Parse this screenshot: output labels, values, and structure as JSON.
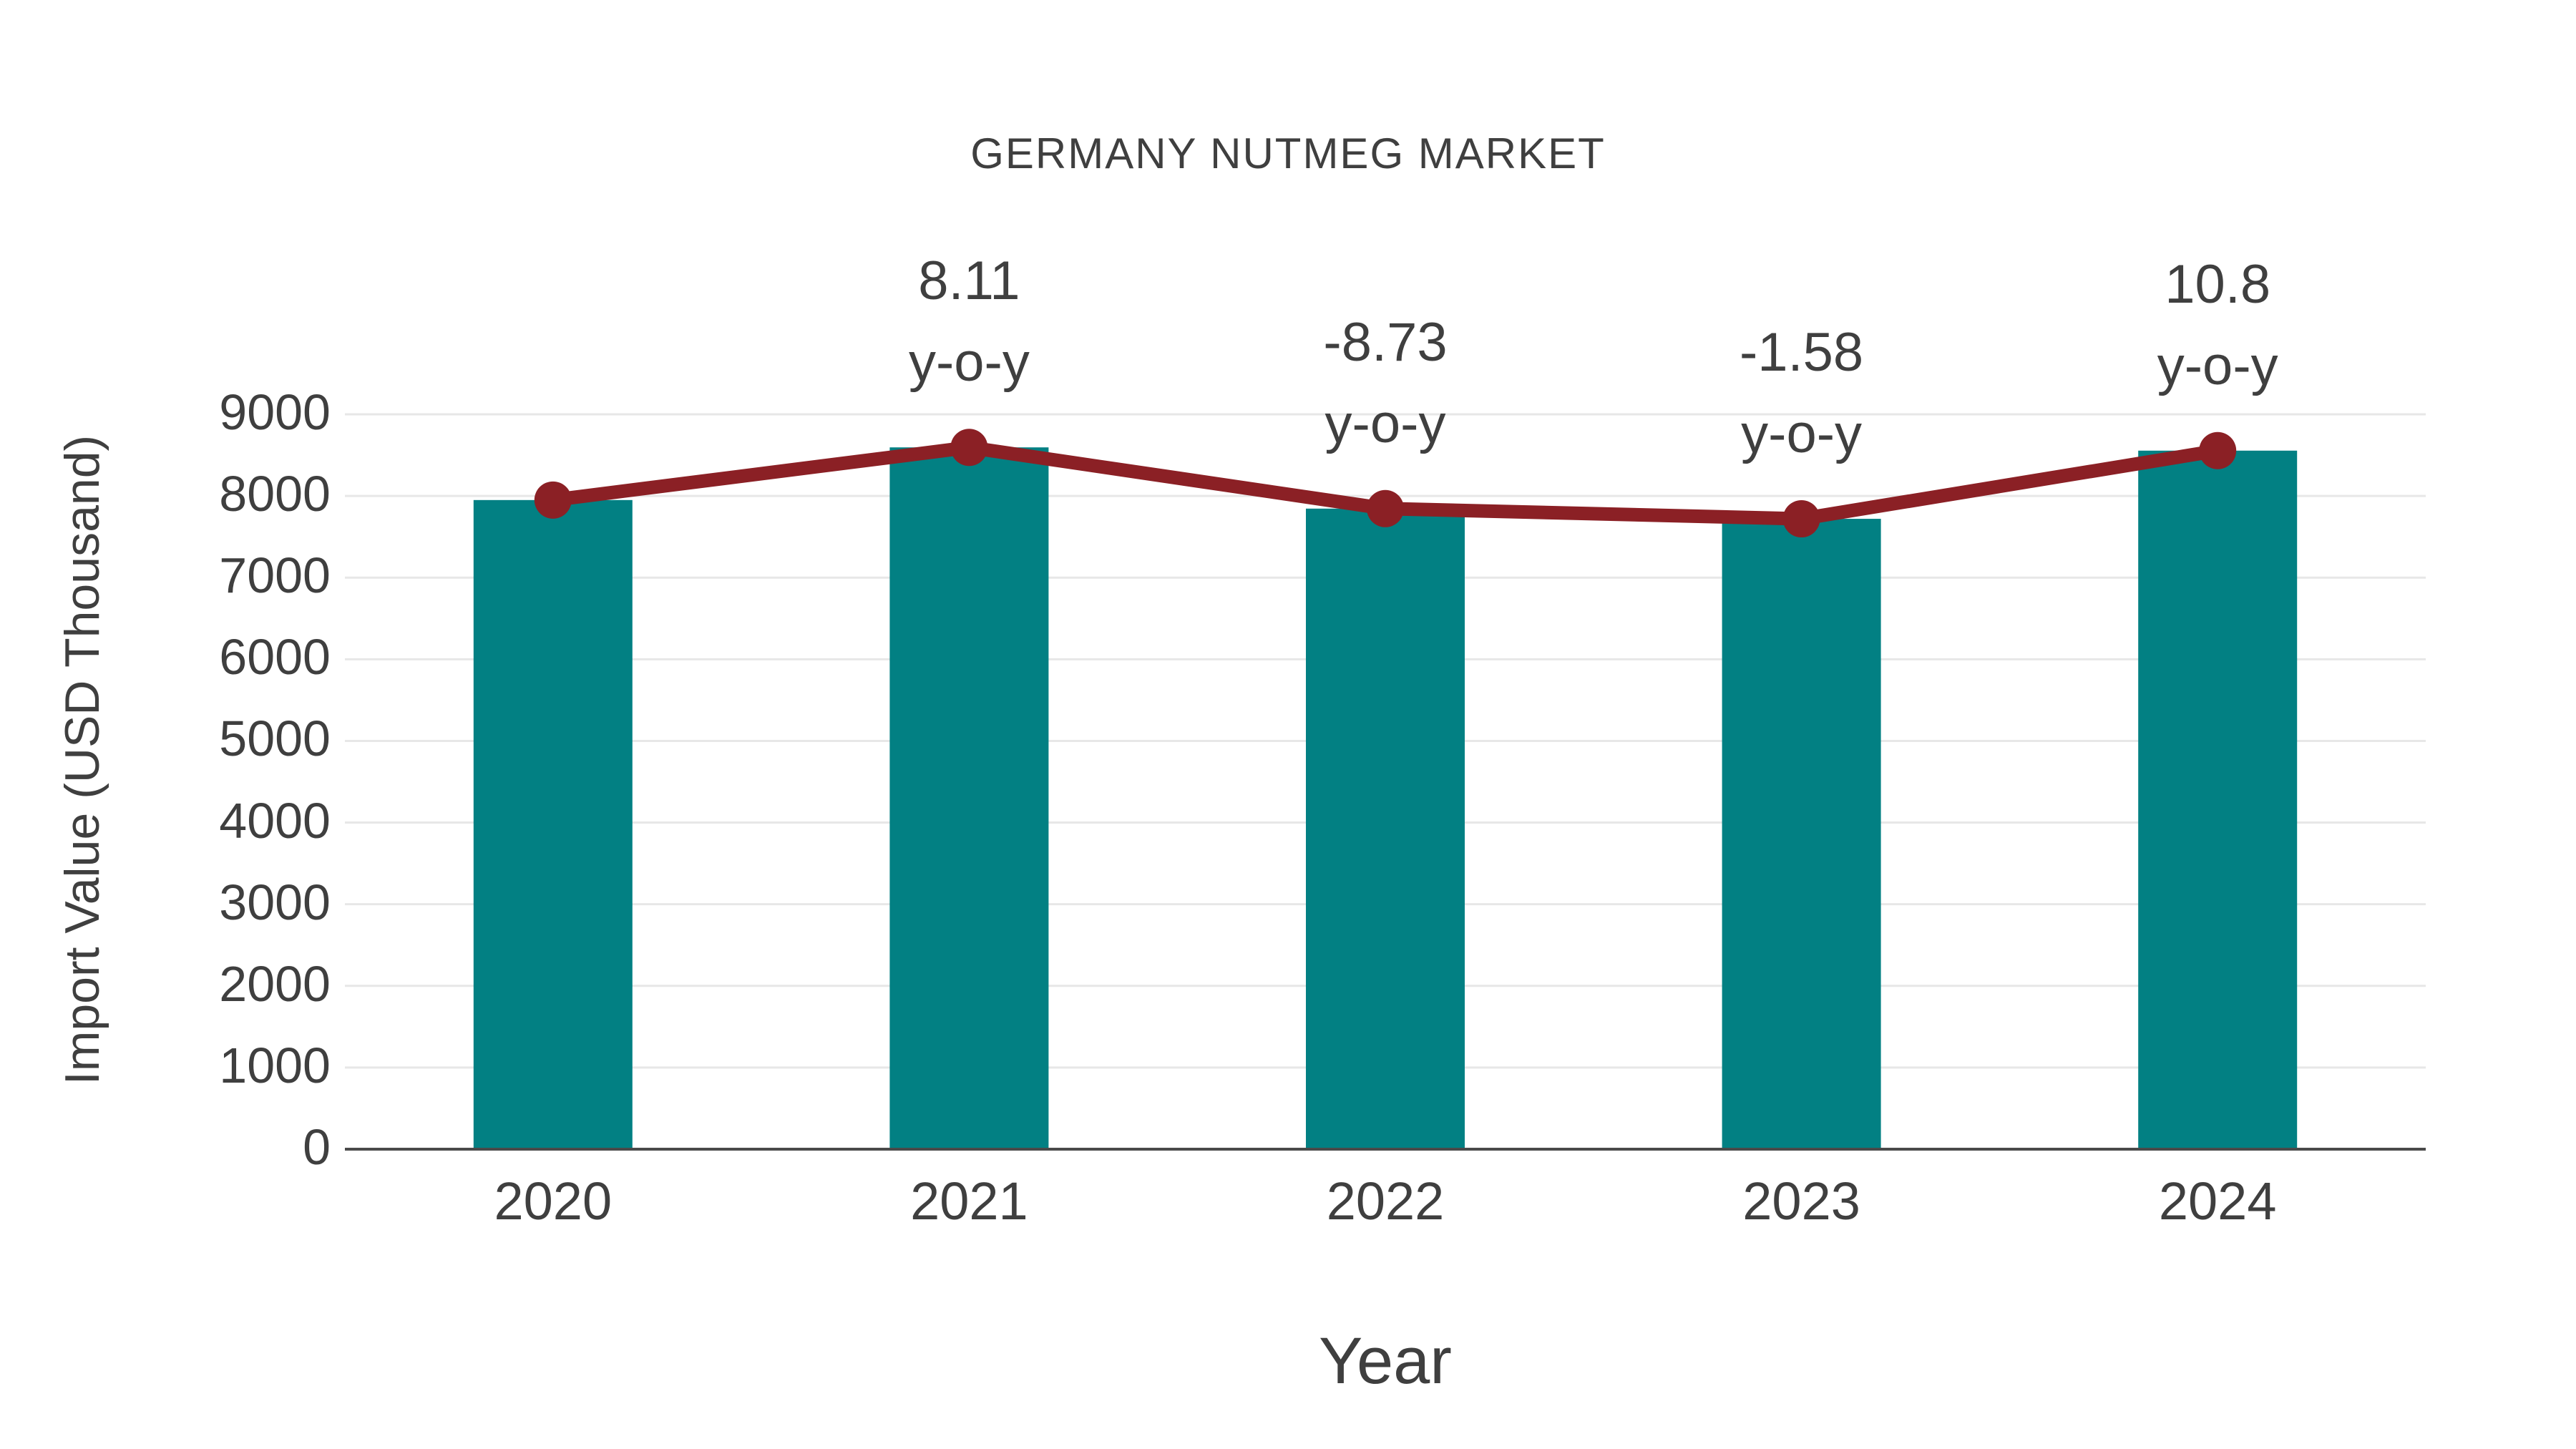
{
  "page": {
    "background": "#ffffff"
  },
  "chart_data": {
    "type": "bar",
    "title": "GERMANY NUTMEG MARKET",
    "categories": [
      "2020",
      "2021",
      "2022",
      "2023",
      "2024"
    ],
    "series": [
      {
        "name": "Import Value",
        "type": "bar",
        "values": [
          7950,
          8595,
          7845,
          7720,
          8555
        ]
      },
      {
        "name": "y-o-y growth",
        "type": "line",
        "values": [
          7950,
          8595,
          7845,
          7720,
          8555
        ],
        "growth_pct": [
          null,
          8.11,
          -8.73,
          -1.58,
          10.8
        ]
      }
    ],
    "annotations": [
      {
        "category": "2021",
        "line1": "8.11",
        "line2": "y-o-y"
      },
      {
        "category": "2022",
        "line1": "-8.73",
        "line2": "y-o-y"
      },
      {
        "category": "2023",
        "line1": "-1.58",
        "line2": "y-o-y"
      },
      {
        "category": "2024",
        "line1": "10.8",
        "line2": "y-o-y"
      }
    ],
    "xlabel": "Year",
    "ylabel": "Import Value (USD Thousand)",
    "ylim": [
      0,
      9000
    ],
    "y_ticks": [
      0,
      1000,
      2000,
      3000,
      4000,
      5000,
      6000,
      7000,
      8000,
      9000
    ],
    "grid": true,
    "legend": "none",
    "colors": {
      "bar": "#028083",
      "line": "#8b2025",
      "text": "#3f3f3f",
      "grid": "#e7e7e7",
      "axis": "#4a4a4a",
      "background": "#ffffff"
    }
  }
}
